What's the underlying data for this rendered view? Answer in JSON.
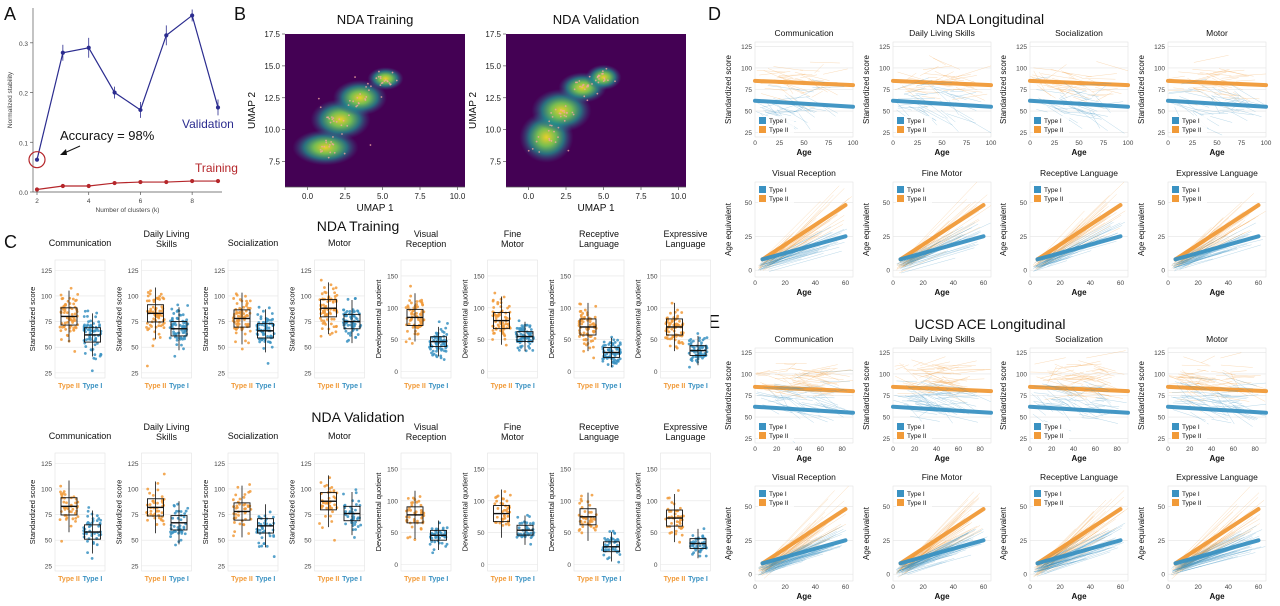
{
  "panel_labels": [
    "A",
    "B",
    "C",
    "D",
    "E"
  ],
  "colors": {
    "type1": "#3a92c2",
    "type2": "#f19a38",
    "validation": "#2b2c8f",
    "training": "#b5262a",
    "umap_bg": "#440154",
    "umap_core": "#fde725",
    "umap_mid": "#21918c"
  },
  "strings": {
    "type1": "Type I",
    "type2": "Type II",
    "standardized": "Standardized score",
    "developmental": "Developmental quotient",
    "age_equiv": "Age equivalent",
    "age": "Age",
    "c_tick_labels": [
      "Type II",
      "Type I"
    ]
  },
  "panelC": {
    "training_title": "NDA Training",
    "validation_title": "NDA Validation",
    "domains": [
      [
        "Communication"
      ],
      [
        "Daily Living",
        "Skills"
      ],
      [
        "Socialization"
      ],
      [
        "Motor"
      ],
      [
        "Visual",
        "Reception"
      ],
      [
        "Fine",
        "Motor"
      ],
      [
        "Receptive",
        "Language"
      ],
      [
        "Expressive",
        "Language"
      ]
    ]
  },
  "panelD": {
    "title": "NDA Longitudinal",
    "top": [
      "Communication",
      "Daily Living Skills",
      "Socialization",
      "Motor"
    ],
    "bottom": [
      "Visual Reception",
      "Fine Motor",
      "Receptive Language",
      "Expressive Language"
    ]
  },
  "panelE": {
    "title": "UCSD ACE Longitudinal",
    "top": [
      "Communication",
      "Daily Living Skills",
      "Socialization",
      "Motor"
    ],
    "bottom": [
      "Visual Reception",
      "Fine Motor",
      "Receptive Language",
      "Expressive Language"
    ]
  },
  "chart_data": [
    {
      "panel": "A",
      "type": "line",
      "xlabel": "Number of clusters (k)",
      "ylabel": "Normalized stability",
      "xlim": [
        2,
        9
      ],
      "ylim": [
        0,
        0.37
      ],
      "x": [
        2,
        3,
        4,
        5,
        6,
        7,
        8,
        9
      ],
      "series": [
        {
          "name": "Validation",
          "values": [
            0.065,
            0.28,
            0.29,
            0.2,
            0.165,
            0.315,
            0.355,
            0.17
          ]
        },
        {
          "name": "Training",
          "values": [
            0.005,
            0.012,
            0.012,
            0.018,
            0.02,
            0.02,
            0.022,
            0.022
          ]
        }
      ],
      "annotation": "Accuracy = 98%",
      "x_ticks": [
        "2",
        "4",
        "6",
        "8"
      ],
      "y_ticks": [
        "0.0",
        "0.1",
        "0.2",
        "0.3"
      ]
    },
    {
      "panel": "B",
      "type": "heatmap",
      "titles": [
        "NDA Training",
        "NDA Validation"
      ],
      "xlabel": "UMAP 1",
      "ylabel": "UMAP 2",
      "xlim": [
        -1.5,
        10.5
      ],
      "ylim": [
        5.5,
        17.5
      ],
      "x_ticks": [
        "0.0",
        "2.5",
        "5.0",
        "7.5",
        "10.0"
      ],
      "y_ticks": [
        "7.5",
        "10.0",
        "12.5",
        "15.0",
        "17.5"
      ]
    },
    {
      "panel": "C",
      "type": "box",
      "categories": [
        "Type II",
        "Type I"
      ],
      "training_medians": [
        [
          80,
          62
        ],
        [
          83,
          68
        ],
        [
          78,
          66
        ],
        [
          88,
          75
        ],
        [
          85,
          47
        ],
        [
          80,
          55
        ],
        [
          70,
          30
        ],
        [
          70,
          33
        ]
      ],
      "validation_medians": [
        [
          83,
          58
        ],
        [
          82,
          67
        ],
        [
          78,
          64
        ],
        [
          88,
          76
        ],
        [
          78,
          46
        ],
        [
          80,
          54
        ],
        [
          75,
          28
        ],
        [
          73,
          33
        ]
      ],
      "y_ticks_left": [
        "25",
        "50",
        "75",
        "100",
        "125"
      ],
      "y_ticks_dq": [
        "0",
        "50",
        "100",
        "150"
      ]
    }
  ]
}
